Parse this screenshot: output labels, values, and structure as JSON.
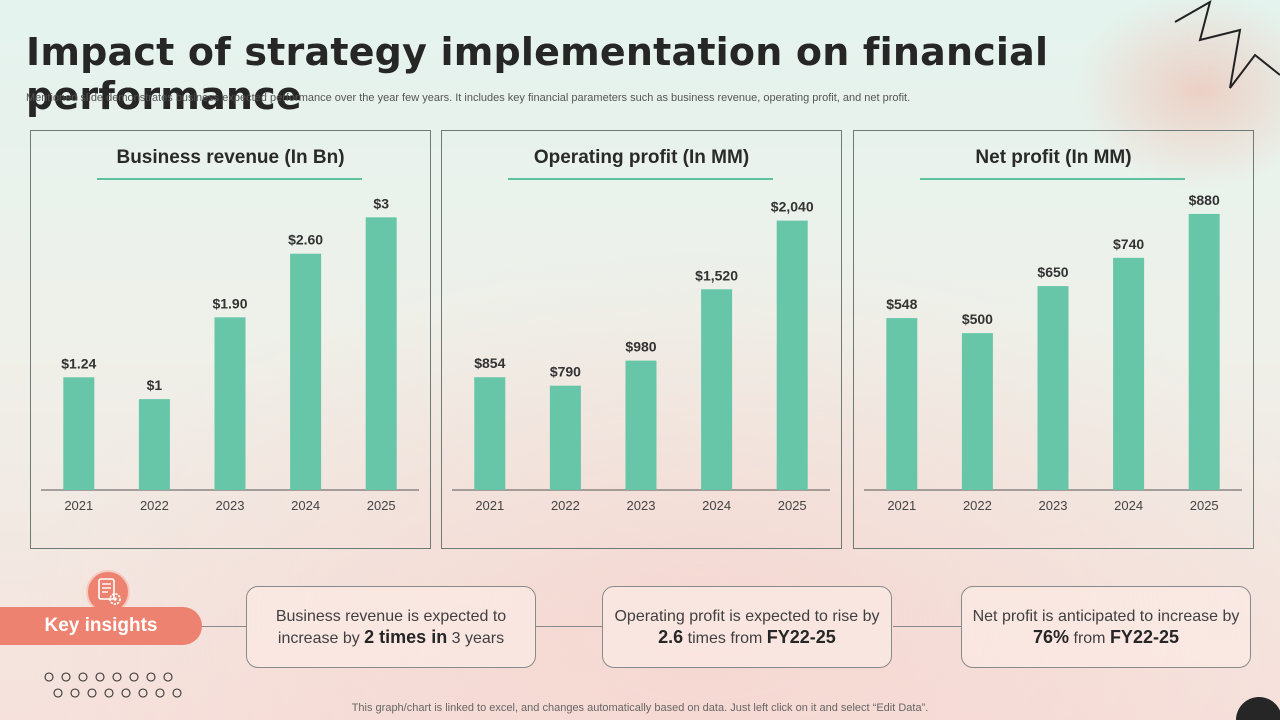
{
  "title": "Impact of strategy implementation on financial performance",
  "subtitle": "Mentioned slide demonstrates business expected performance over the year few years. It includes key financial parameters such as business revenue, operating profit, and net profit.",
  "colors": {
    "bar": "#67c6a8",
    "accent": "#5cc19e",
    "insight": "#ee8270"
  },
  "chart_data": [
    {
      "type": "bar",
      "title": "Business revenue (In Bn)",
      "categories": [
        "2021",
        "2022",
        "2023",
        "2024",
        "2025"
      ],
      "values": [
        1.24,
        1,
        1.9,
        2.6,
        3
      ],
      "labels": [
        "$1.24",
        "$1",
        "$1.90",
        "$2.60",
        "$3"
      ],
      "ylim": [
        0,
        3.4
      ],
      "grid": false
    },
    {
      "type": "bar",
      "title": "Operating profit (In MM)",
      "categories": [
        "2021",
        "2022",
        "2023",
        "2024",
        "2025"
      ],
      "values": [
        854,
        790,
        980,
        1520,
        2040
      ],
      "labels": [
        "$854",
        "$790",
        "$980",
        "$1,520",
        "$2,040"
      ],
      "ylim": [
        0,
        2340
      ],
      "grid": false
    },
    {
      "type": "bar",
      "title": "Net profit (In MM)",
      "categories": [
        "2021",
        "2022",
        "2023",
        "2024",
        "2025"
      ],
      "values": [
        548,
        500,
        650,
        740,
        880
      ],
      "labels": [
        "$548",
        "$500",
        "$650",
        "$740",
        "$880"
      ],
      "ylim": [
        0,
        985
      ],
      "grid": false
    }
  ],
  "insights": {
    "label": "Key insights",
    "items": [
      {
        "pre": "Business revenue  is expected to increase by ",
        "strong1": "2 times in",
        "mid": " 3 years",
        "strong2": ""
      },
      {
        "pre": "Operating profit is expected to rise by ",
        "strong1": "2.6",
        "mid": " times from ",
        "strong2": "FY22-25"
      },
      {
        "pre": "Net profit is anticipated to increase by ",
        "strong1": "76%",
        "mid": " from ",
        "strong2": "FY22-25"
      }
    ]
  },
  "footer": "This graph/chart is linked to excel,  and changes automatically based on data. Just left click on it and select “Edit Data”."
}
